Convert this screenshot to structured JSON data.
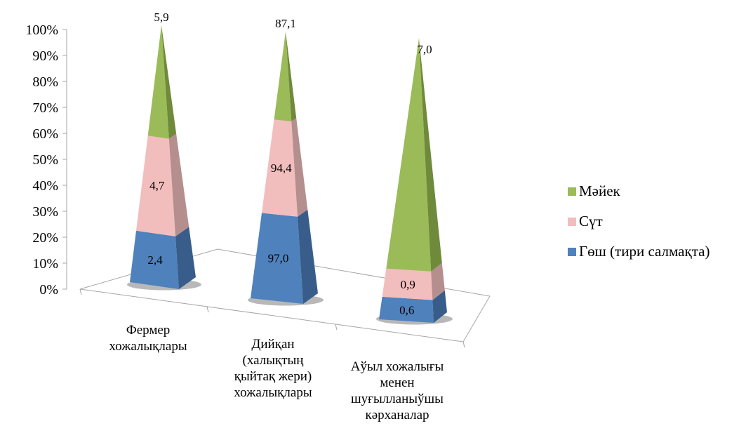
{
  "chart_data": {
    "type": "bar",
    "subtype": "stacked-100-pyramid-3d",
    "categories": [
      [
        "Фермер",
        "хожалықлары"
      ],
      [
        "Дийқан",
        "(халықтың",
        "қыйтақ жери)",
        "хожалықлары"
      ],
      [
        "Аўыл хожалығы",
        "менен",
        "шуғылланыўшы",
        "кәрханалар"
      ]
    ],
    "series": [
      {
        "name": "Гөш (тири салмақта)",
        "color": "#4F81BD",
        "shade": "#385D8A",
        "shares": [
          0.2,
          0.32,
          0.08
        ],
        "labels": [
          "2,4",
          "97,0",
          "0,6"
        ]
      },
      {
        "name": "Сүт",
        "color": "#F2BDBD",
        "shade": "#B58E8E",
        "shares": [
          0.37,
          0.35,
          0.1
        ],
        "labels": [
          "4,7",
          "94,4",
          "0,9"
        ]
      },
      {
        "name": "Мәйек",
        "color": "#9BBB59",
        "shade": "#6F8A3A",
        "shares": [
          0.43,
          0.33,
          0.82
        ],
        "labels": [
          "5,9",
          "87,1",
          "7,0"
        ]
      }
    ],
    "y_ticks": [
      "0%",
      "10%",
      "20%",
      "30%",
      "40%",
      "50%",
      "60%",
      "70%",
      "80%",
      "90%",
      "100%"
    ],
    "ylim": [
      0,
      100
    ],
    "legend_position": "right",
    "grid": false
  }
}
